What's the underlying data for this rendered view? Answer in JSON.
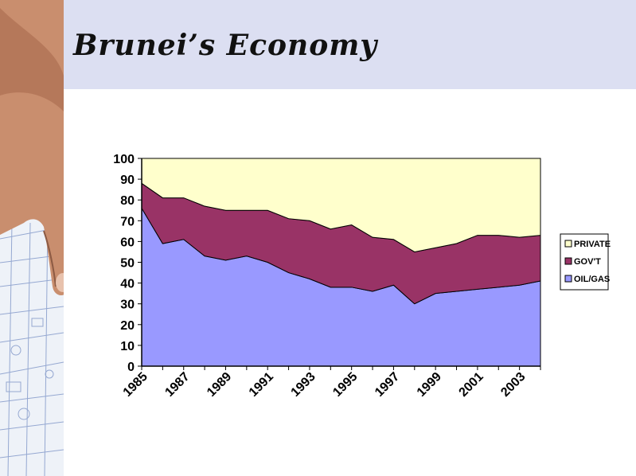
{
  "slide": {
    "title": "Brunei’s Economy"
  },
  "chart_data": {
    "type": "area",
    "stacked": true,
    "title": "",
    "xlabel": "",
    "ylabel": "",
    "x": [
      1985,
      1986,
      1987,
      1988,
      1989,
      1990,
      1991,
      1992,
      1993,
      1994,
      1995,
      1996,
      1997,
      1998,
      1999,
      2000,
      2001,
      2002,
      2003,
      2004
    ],
    "x_tick_labels": [
      "1985",
      "1987",
      "1989",
      "1991",
      "1993",
      "1995",
      "1997",
      "1999",
      "2001",
      "2003"
    ],
    "ylim": [
      0,
      100
    ],
    "y_ticks": [
      0,
      10,
      20,
      30,
      40,
      50,
      60,
      70,
      80,
      90,
      100
    ],
    "series": [
      {
        "name": "OIL/GAS",
        "color": "#9999ff",
        "values": [
          76,
          59,
          61,
          53,
          51,
          53,
          50,
          45,
          42,
          38,
          38,
          36,
          39,
          30,
          35,
          36,
          37,
          38,
          39,
          41
        ]
      },
      {
        "name": "GOV'T",
        "color": "#993366",
        "values": [
          12,
          22,
          20,
          24,
          24,
          22,
          25,
          26,
          28,
          28,
          30,
          26,
          22,
          25,
          22,
          23,
          26,
          25,
          23,
          22
        ]
      },
      {
        "name": "PRIVATE",
        "color": "#ffffcc",
        "values": [
          12,
          19,
          19,
          23,
          25,
          25,
          25,
          29,
          30,
          34,
          32,
          38,
          39,
          45,
          43,
          41,
          37,
          37,
          38,
          37
        ]
      }
    ],
    "legend": {
      "position": "right",
      "order": [
        "PRIVATE",
        "GOV'T",
        "OIL/GAS"
      ]
    },
    "grid": false
  }
}
